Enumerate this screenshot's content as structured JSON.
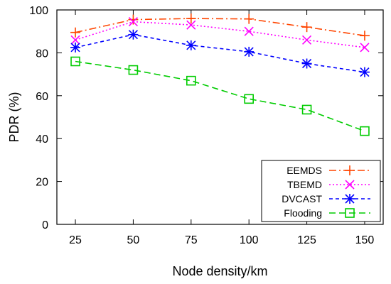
{
  "chart_data": {
    "type": "line",
    "xlabel": "Node density/km",
    "ylabel": "PDR (%)",
    "x": [
      25,
      50,
      75,
      100,
      125,
      150
    ],
    "xlim": [
      17,
      158
    ],
    "ylim": [
      0,
      100
    ],
    "xticks": [
      "25",
      "50",
      "75",
      "100",
      "125",
      "150"
    ],
    "yticks": [
      "0",
      "20",
      "40",
      "60",
      "80",
      "100"
    ],
    "grid": false,
    "legend_position": "bottom-right",
    "series": [
      {
        "name": "EEMDS",
        "values": [
          89.5,
          95.5,
          96,
          95.8,
          92,
          88
        ],
        "color": "#ff4500",
        "dash": "dash-dot",
        "marker": "plus"
      },
      {
        "name": "TBEMD",
        "values": [
          86,
          94.5,
          93,
          90,
          86,
          82.5
        ],
        "color": "#ff00ff",
        "dash": "dotted",
        "marker": "cross"
      },
      {
        "name": "DVCAST",
        "values": [
          82.5,
          88.5,
          83.5,
          80.5,
          75,
          71
        ],
        "color": "#0000ff",
        "dash": "dashed",
        "marker": "asterisk"
      },
      {
        "name": "Flooding",
        "values": [
          76,
          72,
          67,
          58.5,
          53.5,
          43.5
        ],
        "color": "#00cc00",
        "dash": "long-dashed",
        "marker": "open-square"
      }
    ]
  }
}
